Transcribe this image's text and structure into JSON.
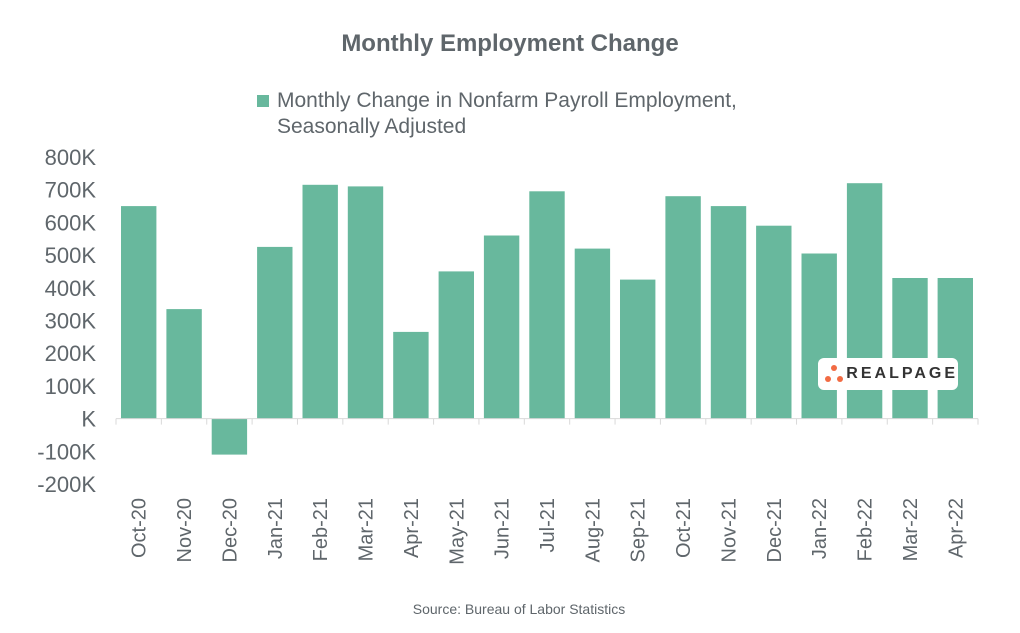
{
  "chart_data": {
    "type": "bar",
    "title": "Monthly Employment Change",
    "categories": [
      "Oct-20",
      "Nov-20",
      "Dec-20",
      "Jan-21",
      "Feb-21",
      "Mar-21",
      "Apr-21",
      "May-21",
      "Jun-21",
      "Jul-21",
      "Aug-21",
      "Sep-21",
      "Oct-21",
      "Nov-21",
      "Dec-21",
      "Jan-22",
      "Feb-22",
      "Mar-22",
      "Apr-22"
    ],
    "series": [
      {
        "name": "Monthly Change in Nonfarm Payroll Employment, Seasonally Adjusted",
        "values": [
          650,
          335,
          -110,
          525,
          715,
          710,
          265,
          450,
          560,
          695,
          520,
          425,
          680,
          650,
          590,
          505,
          720,
          430,
          430
        ],
        "color": "#68b89d"
      }
    ],
    "ytick_labels": [
      "800K",
      "700K",
      "600K",
      "500K",
      "400K",
      "300K",
      "200K",
      "100K",
      "K",
      "-100K",
      "-200K"
    ],
    "ytick_values": [
      800,
      700,
      600,
      500,
      400,
      300,
      200,
      100,
      0,
      -100,
      -200
    ],
    "ylim": [
      -200,
      800
    ],
    "xlabel": "",
    "ylabel": "",
    "grid": false,
    "legend_position": "top",
    "source": "Source: Bureau of Labor Statistics"
  },
  "logo": {
    "text": "REALPAGE",
    "color": "#f26b43"
  }
}
